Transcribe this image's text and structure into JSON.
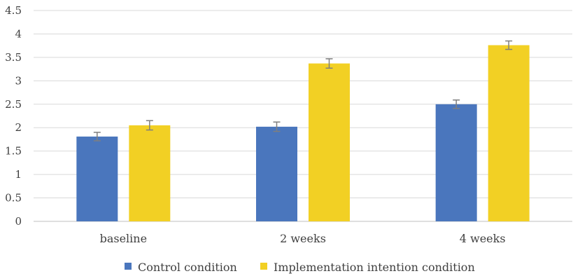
{
  "chart_data": {
    "type": "bar",
    "categories": [
      "baseline",
      "2 weeks",
      "4 weeks"
    ],
    "series": [
      {
        "name": "Control condition",
        "color": "#4a76bd",
        "values": [
          1.81,
          2.02,
          2.5
        ],
        "errors": [
          0.09,
          0.1,
          0.09
        ]
      },
      {
        "name": "Implementation intention condition",
        "color": "#f2d024",
        "values": [
          2.05,
          3.37,
          3.76
        ],
        "errors": [
          0.1,
          0.1,
          0.09
        ]
      }
    ],
    "ylim": [
      0,
      4.5
    ],
    "yticks": [
      "0",
      "0.5",
      "1",
      "1.5",
      "2",
      "2.5",
      "3",
      "3.5",
      "4",
      "4.5"
    ],
    "grid": true,
    "legend_position": "bottom",
    "title": "",
    "xlabel": "",
    "ylabel": ""
  }
}
